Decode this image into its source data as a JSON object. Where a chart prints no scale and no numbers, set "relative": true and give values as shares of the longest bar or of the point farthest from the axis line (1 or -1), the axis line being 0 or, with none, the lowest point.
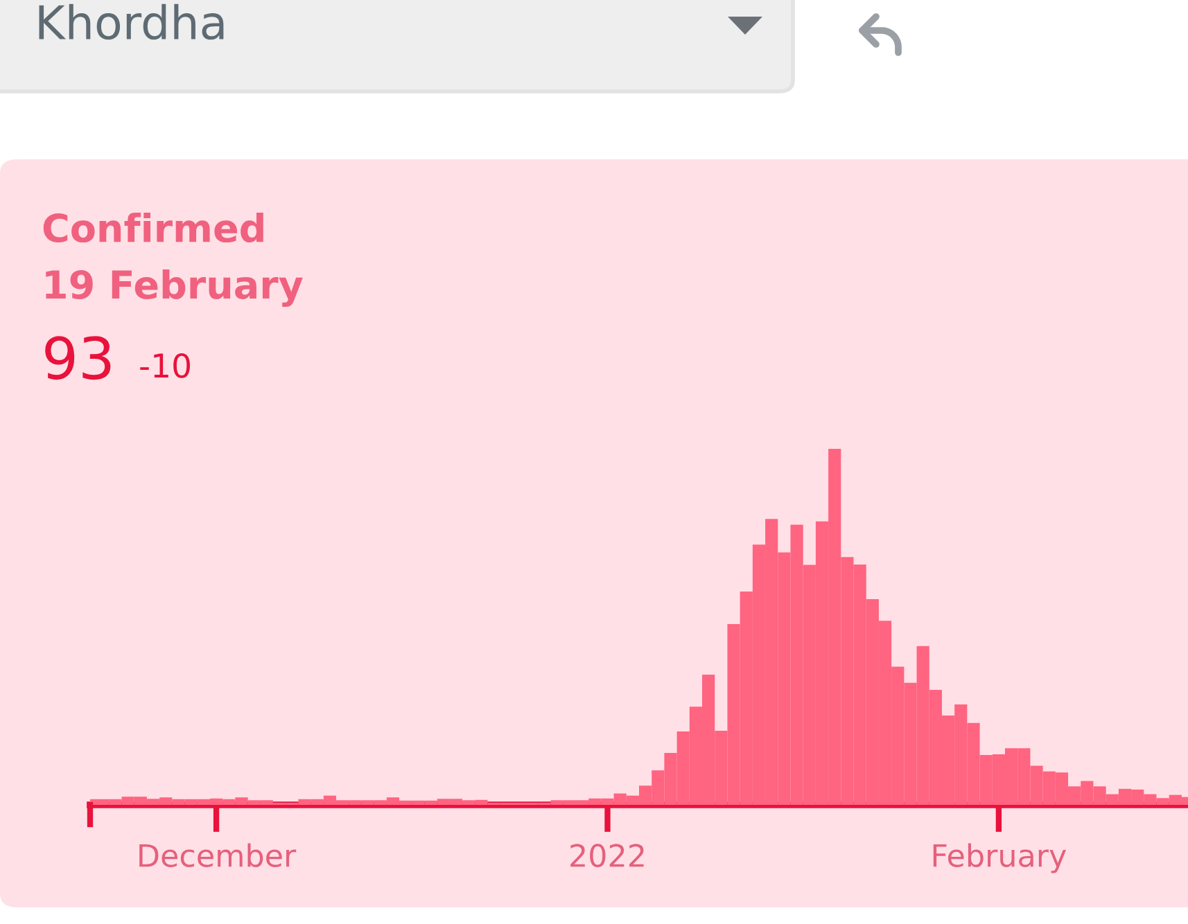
{
  "chart_data": {
    "type": "bar",
    "title": "Confirmed",
    "subtitle": "19 February",
    "annotations": [
      "Khordha",
      "93",
      "-10"
    ],
    "relative": true,
    "tick_labels": "x",
    "grid": false,
    "legend": false,
    "x": [
      "2021-11-21",
      "2021-11-22",
      "2021-11-23",
      "2021-11-24",
      "2021-11-25",
      "2021-11-26",
      "2021-11-27",
      "2021-11-28",
      "2021-11-29",
      "2021-11-30",
      "2021-12-01",
      "2021-12-02",
      "2021-12-03",
      "2021-12-04",
      "2021-12-05",
      "2021-12-06",
      "2021-12-07",
      "2021-12-08",
      "2021-12-09",
      "2021-12-10",
      "2021-12-11",
      "2021-12-12",
      "2021-12-13",
      "2021-12-14",
      "2021-12-15",
      "2021-12-16",
      "2021-12-17",
      "2021-12-18",
      "2021-12-19",
      "2021-12-20",
      "2021-12-21",
      "2021-12-22",
      "2021-12-23",
      "2021-12-24",
      "2021-12-25",
      "2021-12-26",
      "2021-12-27",
      "2021-12-28",
      "2021-12-29",
      "2021-12-30",
      "2021-12-31",
      "2022-01-01",
      "2022-01-02",
      "2022-01-03",
      "2022-01-04",
      "2022-01-05",
      "2022-01-06",
      "2022-01-07",
      "2022-01-08",
      "2022-01-09",
      "2022-01-10",
      "2022-01-11",
      "2022-01-12",
      "2022-01-13",
      "2022-01-14",
      "2022-01-15",
      "2022-01-16",
      "2022-01-17",
      "2022-01-18",
      "2022-01-19",
      "2022-01-20",
      "2022-01-21",
      "2022-01-22",
      "2022-01-23",
      "2022-01-24",
      "2022-01-25",
      "2022-01-26",
      "2022-01-27",
      "2022-01-28",
      "2022-01-29",
      "2022-01-30",
      "2022-01-31",
      "2022-02-01",
      "2022-02-02",
      "2022-02-03",
      "2022-02-04",
      "2022-02-05",
      "2022-02-06",
      "2022-02-07",
      "2022-02-08",
      "2022-02-09",
      "2022-02-10",
      "2022-02-11",
      "2022-02-12",
      "2022-02-13",
      "2022-02-14",
      "2022-02-15",
      "2022-02-16"
    ],
    "series": [
      {
        "color": "#ff6481",
        "values": [
          0.016,
          0.016,
          0.016,
          0.023,
          0.023,
          0.017,
          0.021,
          0.016,
          0.016,
          0.016,
          0.018,
          0.016,
          0.021,
          0.013,
          0.013,
          0.006,
          0.006,
          0.016,
          0.016,
          0.026,
          0.013,
          0.013,
          0.013,
          0.013,
          0.021,
          0.012,
          0.012,
          0.012,
          0.017,
          0.017,
          0.013,
          0.014,
          0.006,
          0.006,
          0.006,
          0.006,
          0.006,
          0.013,
          0.013,
          0.013,
          0.018,
          0.018,
          0.032,
          0.026,
          0.054,
          0.097,
          0.146,
          0.206,
          0.276,
          0.366,
          0.208,
          0.508,
          0.599,
          0.731,
          0.803,
          0.709,
          0.787,
          0.674,
          0.796,
          1,
          0.696,
          0.675,
          0.578,
          0.517,
          0.388,
          0.343,
          0.446,
          0.323,
          0.251,
          0.282,
          0.23,
          0.14,
          0.142,
          0.159,
          0.159,
          0.11,
          0.094,
          0.091,
          0.052,
          0.067,
          0.052,
          0.03,
          0.045,
          0.043,
          0.03,
          0.019,
          0.028,
          0.022
        ]
      }
    ],
    "xlim": [
      "2021-11-21",
      "2022-02-16"
    ],
    "xticks": [
      {
        "value": "2021-12-01",
        "label": "December"
      },
      {
        "value": "2022-01-01",
        "label": "2022"
      },
      {
        "value": "2022-02-01",
        "label": "February"
      }
    ]
  }
}
